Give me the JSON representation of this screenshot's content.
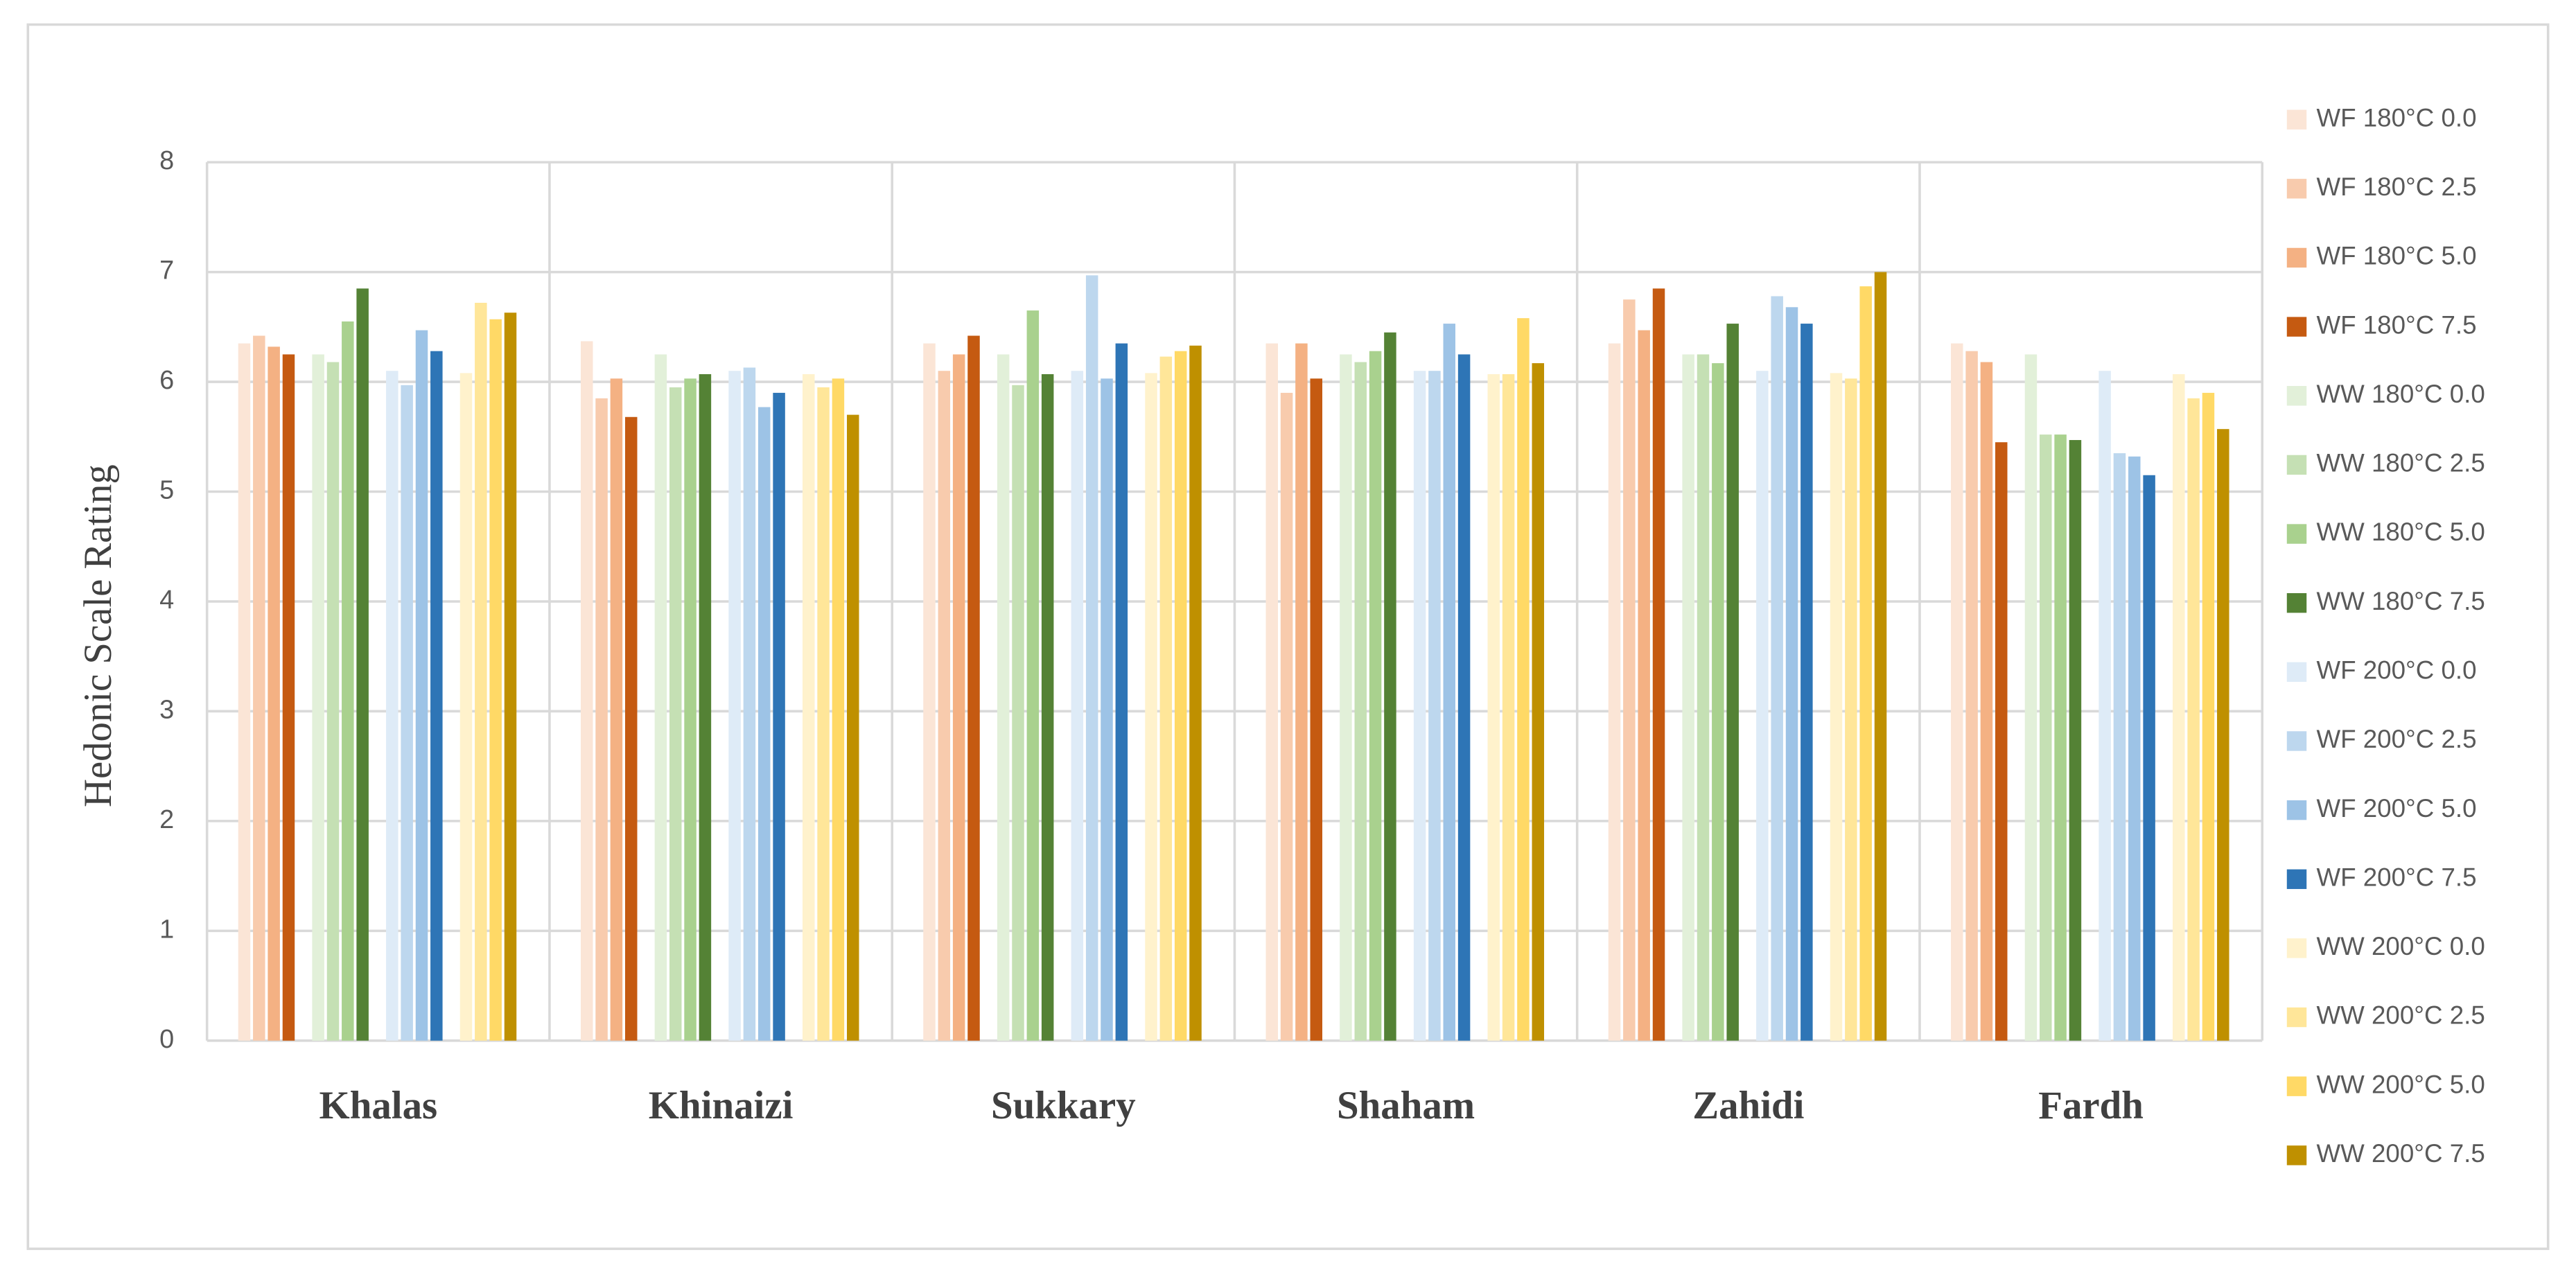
{
  "chart_data": {
    "type": "bar",
    "y_label": "Hedonic Scale Rating",
    "categories": [
      "Khalas",
      "Khinaizi",
      "Sukkary",
      "Shaham",
      "Zahidi",
      "Fardh"
    ],
    "ylim": [
      0,
      8
    ],
    "yticks": [
      0,
      1,
      2,
      3,
      4,
      5,
      6,
      7,
      8
    ],
    "grid": true,
    "legend": "right",
    "series": [
      {
        "name": "WF 180°C 0.0",
        "color": "#fbe5d6",
        "values": [
          6.35,
          6.37,
          6.35,
          6.35,
          6.35,
          6.35
        ]
      },
      {
        "name": "WF 180°C 2.5",
        "color": "#f8cbad",
        "values": [
          6.42,
          5.85,
          6.1,
          5.9,
          6.75,
          6.28
        ]
      },
      {
        "name": "WF 180°C 5.0",
        "color": "#f4b183",
        "values": [
          6.32,
          6.03,
          6.25,
          6.35,
          6.47,
          6.18
        ]
      },
      {
        "name": "WF 180°C 7.5",
        "color": "#c55a11",
        "values": [
          6.25,
          5.68,
          6.42,
          6.03,
          6.85,
          5.45
        ]
      },
      {
        "name": "WW 180°C 0.0",
        "color": "#e2f0d9",
        "values": [
          6.25,
          6.25,
          6.25,
          6.25,
          6.25,
          6.25
        ]
      },
      {
        "name": "WW 180°C 2.5",
        "color": "#c5e0b4",
        "values": [
          6.18,
          5.95,
          5.97,
          6.18,
          6.25,
          5.52
        ]
      },
      {
        "name": "WW 180°C 5.0",
        "color": "#a9d18e",
        "values": [
          6.55,
          6.03,
          6.65,
          6.28,
          6.17,
          5.52
        ]
      },
      {
        "name": "WW 180°C 7.5",
        "color": "#548235",
        "values": [
          6.85,
          6.07,
          6.07,
          6.45,
          6.53,
          5.47
        ]
      },
      {
        "name": "WF 200°C 0.0",
        "color": "#deebf7",
        "values": [
          6.1,
          6.1,
          6.1,
          6.1,
          6.1,
          6.1
        ]
      },
      {
        "name": "WF 200°C 2.5",
        "color": "#bdd7ee",
        "values": [
          5.97,
          6.13,
          6.97,
          6.1,
          6.78,
          5.35
        ]
      },
      {
        "name": "WF 200°C 5.0",
        "color": "#9dc3e6",
        "values": [
          6.47,
          5.77,
          6.03,
          6.53,
          6.68,
          5.32
        ]
      },
      {
        "name": "WF 200°C 7.5",
        "color": "#2e75b6",
        "values": [
          6.28,
          5.9,
          6.35,
          6.25,
          6.53,
          5.15
        ]
      },
      {
        "name": "WW 200°C 0.0",
        "color": "#fff2cc",
        "values": [
          6.08,
          6.07,
          6.08,
          6.07,
          6.08,
          6.07
        ]
      },
      {
        "name": "WW 200°C 2.5",
        "color": "#ffe699",
        "values": [
          6.72,
          5.95,
          6.23,
          6.07,
          6.03,
          5.85
        ]
      },
      {
        "name": "WW 200°C 5.0",
        "color": "#ffd966",
        "values": [
          6.57,
          6.03,
          6.28,
          6.58,
          6.87,
          5.9
        ]
      },
      {
        "name": "WW 200°C 7.5",
        "color": "#bf9000",
        "values": [
          6.63,
          5.7,
          6.33,
          6.17,
          7.0,
          5.57
        ]
      }
    ]
  }
}
